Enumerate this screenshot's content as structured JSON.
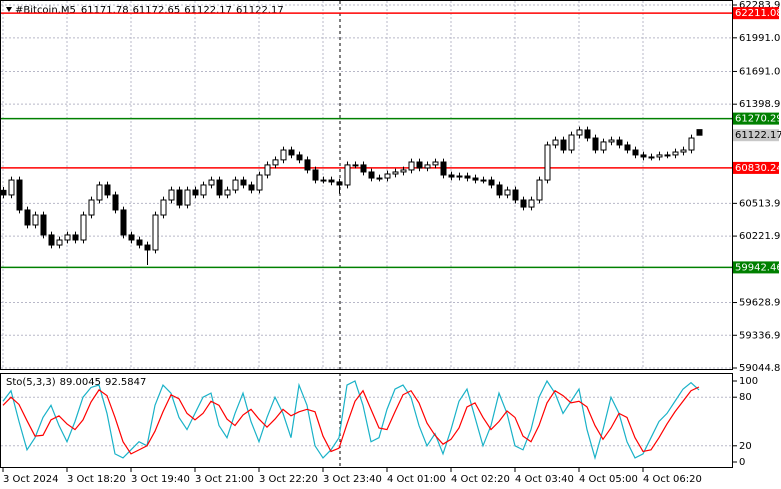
{
  "chart_data": [
    {
      "type": "candlestick",
      "symbol": "#Bitcoin,M5",
      "categories": [
        "3 Oct 2024",
        null,
        null,
        null,
        null,
        null,
        null,
        null,
        "3 Oct 18:20",
        null,
        null,
        null,
        null,
        null,
        null,
        null,
        "3 Oct 19:40",
        null,
        null,
        null,
        null,
        null,
        null,
        null,
        "3 Oct 21:00",
        null,
        null,
        null,
        null,
        null,
        null,
        null,
        "3 Oct 22:20",
        null,
        null,
        null,
        null,
        null,
        null,
        null,
        "3 Oct 23:40",
        null,
        null,
        null,
        null,
        null,
        null,
        null,
        "4 Oct 01:00",
        null,
        null,
        null,
        null,
        null,
        null,
        null,
        "4 Oct 02:20",
        null,
        null,
        null,
        null,
        null,
        null,
        null,
        "4 Oct 03:40",
        null,
        null,
        null,
        null,
        null,
        null,
        null,
        "4 Oct 05:00",
        null,
        null,
        null,
        null,
        null,
        null,
        null,
        "4 Oct 06:20",
        null,
        null,
        null,
        null,
        null,
        null,
        null
      ],
      "candles": [
        [
          60630,
          60660,
          60559,
          60589
        ],
        [
          60589,
          60752,
          60559,
          60722
        ],
        [
          60722,
          60752,
          60425,
          60455
        ],
        [
          60455,
          60485,
          60291,
          60321
        ],
        [
          60321,
          60440,
          60291,
          60410
        ],
        [
          60410,
          60440,
          60202,
          60232
        ],
        [
          60232,
          60262,
          60112,
          60142
        ],
        [
          60142,
          60217,
          60112,
          60187
        ],
        [
          60187,
          60262,
          60157,
          60232
        ],
        [
          60232,
          60262,
          60157,
          60187
        ],
        [
          60187,
          60440,
          60157,
          60410
        ],
        [
          60410,
          60574,
          60380,
          60544
        ],
        [
          60544,
          60708,
          60514,
          60678
        ],
        [
          60678,
          60708,
          60559,
          60589
        ],
        [
          60589,
          60619,
          60425,
          60455
        ],
        [
          60455,
          60485,
          60202,
          60232
        ],
        [
          60232,
          60262,
          60157,
          60187
        ],
        [
          60187,
          60217,
          60112,
          60142
        ],
        [
          60142,
          60172,
          59964,
          60098
        ],
        [
          60098,
          60440,
          60068,
          60410
        ],
        [
          60410,
          60574,
          60380,
          60544
        ],
        [
          60544,
          60663,
          60514,
          60633
        ],
        [
          60633,
          60663,
          60469,
          60499
        ],
        [
          60499,
          60663,
          60469,
          60633
        ],
        [
          60633,
          60663,
          60559,
          60589
        ],
        [
          60589,
          60708,
          60559,
          60678
        ],
        [
          60678,
          60752,
          60648,
          60722
        ],
        [
          60722,
          60752,
          60559,
          60589
        ],
        [
          60589,
          60663,
          60559,
          60633
        ],
        [
          60633,
          60752,
          60603,
          60722
        ],
        [
          60722,
          60752,
          60648,
          60678
        ],
        [
          60678,
          60708,
          60603,
          60633
        ],
        [
          60633,
          60797,
          60603,
          60767
        ],
        [
          60767,
          60887,
          60737,
          60857
        ],
        [
          60857,
          60932,
          60827,
          60902
        ],
        [
          60902,
          61020,
          60872,
          60990
        ],
        [
          60990,
          61020,
          60916,
          60946
        ],
        [
          60946,
          60976,
          60872,
          60902
        ],
        [
          60902,
          60932,
          60782,
          60812
        ],
        [
          60812,
          60842,
          60692,
          60722
        ],
        [
          60722,
          60752,
          60692,
          60722
        ],
        [
          60722,
          60752,
          60675,
          60705
        ],
        [
          60705,
          60735,
          60600,
          60678
        ],
        [
          60678,
          60887,
          60648,
          60857
        ],
        [
          60857,
          60887,
          60827,
          60857
        ],
        [
          60857,
          60887,
          60764,
          60794
        ],
        [
          60794,
          60824,
          60710,
          60740
        ],
        [
          60740,
          60770,
          60710,
          60740
        ],
        [
          60740,
          60806,
          60710,
          60776
        ],
        [
          60776,
          60824,
          60746,
          60794
        ],
        [
          60794,
          60842,
          60764,
          60812
        ],
        [
          60812,
          60913,
          60782,
          60883
        ],
        [
          60883,
          60913,
          60800,
          60830
        ],
        [
          60830,
          60887,
          60800,
          60857
        ],
        [
          60857,
          60913,
          60827,
          60883
        ],
        [
          60883,
          60913,
          60737,
          60767
        ],
        [
          60767,
          60797,
          60719,
          60749
        ],
        [
          60749,
          60788,
          60719,
          60758
        ],
        [
          60758,
          60788,
          60710,
          60740
        ],
        [
          60740,
          60770,
          60692,
          60722
        ],
        [
          60722,
          60752,
          60692,
          60722
        ],
        [
          60722,
          60752,
          60648,
          60678
        ],
        [
          60678,
          60708,
          60559,
          60589
        ],
        [
          60589,
          60663,
          60559,
          60633
        ],
        [
          60633,
          60663,
          60514,
          60544
        ],
        [
          60544,
          60574,
          60451,
          60481
        ],
        [
          60481,
          60574,
          60451,
          60544
        ],
        [
          60544,
          60752,
          60514,
          60722
        ],
        [
          60722,
          61065,
          60692,
          61035
        ],
        [
          61035,
          61109,
          61005,
          61079
        ],
        [
          61079,
          61109,
          60960,
          60990
        ],
        [
          60990,
          61154,
          60960,
          61124
        ],
        [
          61124,
          61199,
          61094,
          61169
        ],
        [
          61169,
          61199,
          61067,
          61097
        ],
        [
          61097,
          61127,
          60960,
          60990
        ],
        [
          60990,
          61092,
          60960,
          61062
        ],
        [
          61062,
          61109,
          61032,
          61079
        ],
        [
          61079,
          61109,
          61005,
          61035
        ],
        [
          61035,
          61065,
          60960,
          60990
        ],
        [
          60990,
          61020,
          60916,
          60946
        ],
        [
          60946,
          60976,
          60898,
          60928
        ],
        [
          60928,
          60958,
          60898,
          60928
        ],
        [
          60928,
          60976,
          60898,
          60946
        ],
        [
          60946,
          60976,
          60916,
          60946
        ],
        [
          60946,
          61002,
          60916,
          60972
        ],
        [
          60972,
          61020,
          60942,
          60990
        ],
        [
          60990,
          61127,
          60960,
          61097
        ],
        [
          61171.78,
          61172.65,
          61122.17,
          61122.17
        ]
      ],
      "ylim": [
        59044.85,
        62283.95
      ],
      "yticks": [
        62283.95,
        {
          "value": 61991,
          "label": "61991.00"
        },
        {
          "value": 61691,
          "label": "61691.00"
        },
        61398.95,
        60513.95,
        {
          "value": 60221.9,
          "label": "60221.90"
        },
        59628.95,
        {
          "value": 59336.9,
          "label": "59336.90"
        },
        59044.85
      ],
      "levels": [
        {
          "value": 62211.08,
          "color": "#ff0000"
        },
        {
          "value": 61270.29,
          "color": "#008000"
        },
        {
          "value": 60830.24,
          "color": "#ff0000"
        },
        {
          "value": 59942.46,
          "color": "#008000"
        }
      ],
      "grid": true
    },
    {
      "type": "line",
      "title": "Sto(5,3,3)",
      "series": [
        {
          "color": "#1ab2c8",
          "values": [
            75,
            88,
            50,
            15,
            30,
            55,
            70,
            45,
            25,
            50,
            80,
            92,
            95,
            60,
            10,
            5,
            15,
            25,
            20,
            70,
            95,
            85,
            55,
            40,
            60,
            80,
            85,
            45,
            30,
            60,
            85,
            50,
            25,
            55,
            80,
            60,
            30,
            95,
            70,
            20,
            5,
            15,
            30,
            95,
            100,
            70,
            25,
            30,
            65,
            90,
            95,
            80,
            45,
            20,
            35,
            10,
            40,
            75,
            90,
            55,
            20,
            45,
            85,
            60,
            20,
            15,
            40,
            80,
            100,
            85,
            60,
            75,
            90,
            40,
            5,
            40,
            80,
            60,
            25,
            5,
            10,
            30,
            50,
            60,
            75,
            90,
            98,
            89.0045
          ]
        },
        {
          "color": "#ff0000",
          "values": [
            70,
            80,
            71,
            51,
            32,
            33,
            52,
            57,
            47,
            40,
            52,
            74,
            89,
            82,
            55,
            25,
            10,
            15,
            20,
            38,
            62,
            83,
            78,
            60,
            52,
            60,
            75,
            70,
            53,
            45,
            58,
            65,
            53,
            43,
            53,
            65,
            57,
            62,
            65,
            62,
            32,
            13,
            17,
            47,
            75,
            88,
            65,
            42,
            40,
            62,
            83,
            88,
            73,
            48,
            33,
            22,
            28,
            42,
            68,
            73,
            55,
            40,
            50,
            63,
            55,
            32,
            25,
            45,
            73,
            88,
            82,
            73,
            75,
            68,
            45,
            28,
            42,
            60,
            55,
            30,
            13,
            15,
            30,
            47,
            62,
            75,
            88,
            92.5847
          ]
        }
      ],
      "ylim": [
        0,
        100
      ],
      "yticks": [
        0,
        20,
        80,
        100
      ],
      "grid": true
    }
  ]
}
